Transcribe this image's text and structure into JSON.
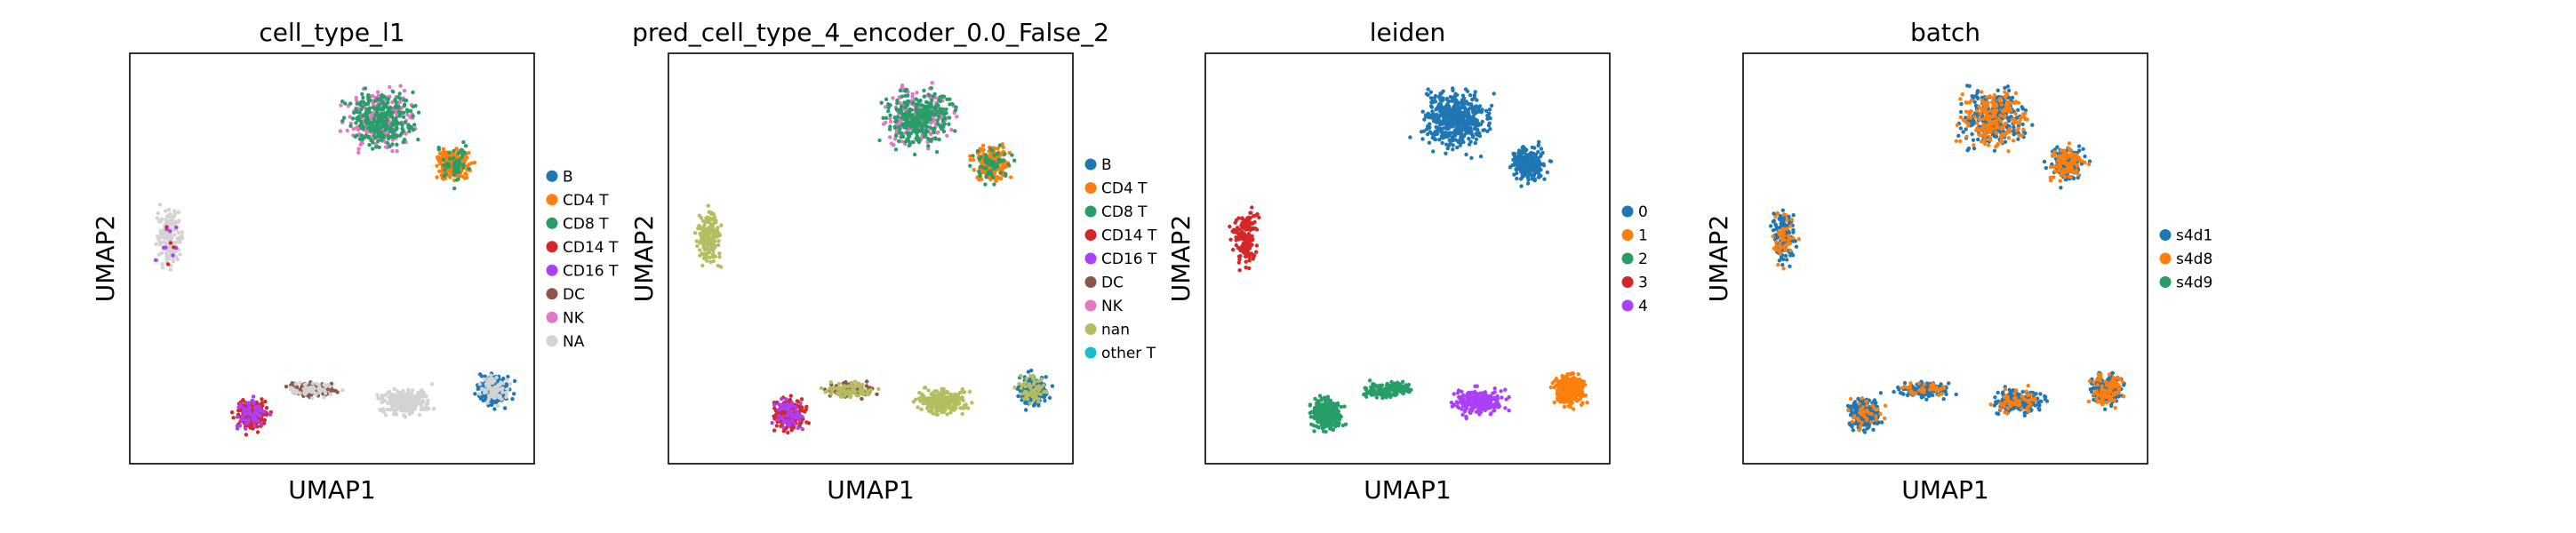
{
  "figure": {
    "panels": [
      {
        "title": "cell_type_l1",
        "xlabel": "UMAP1",
        "ylabel": "UMAP2",
        "legend": [
          {
            "label": "B",
            "color": "#1f77b4"
          },
          {
            "label": "CD4 T",
            "color": "#ff7f0e"
          },
          {
            "label": "CD8 T",
            "color": "#279e68"
          },
          {
            "label": "CD14 T",
            "color": "#d62728"
          },
          {
            "label": "CD16 T",
            "color": "#aa40fc"
          },
          {
            "label": "DC",
            "color": "#8c564b"
          },
          {
            "label": "NK",
            "color": "#e377c2"
          },
          {
            "label": "NA",
            "color": "#d3d3d3"
          }
        ]
      },
      {
        "title": "pred_cell_type_4_encoder_0.0_False_2",
        "xlabel": "UMAP1",
        "ylabel": "UMAP2",
        "legend": [
          {
            "label": "B",
            "color": "#1f77b4"
          },
          {
            "label": "CD4 T",
            "color": "#ff7f0e"
          },
          {
            "label": "CD8 T",
            "color": "#279e68"
          },
          {
            "label": "CD14 T",
            "color": "#d62728"
          },
          {
            "label": "CD16 T",
            "color": "#aa40fc"
          },
          {
            "label": "DC",
            "color": "#8c564b"
          },
          {
            "label": "NK",
            "color": "#e377c2"
          },
          {
            "label": "nan",
            "color": "#b5bd61"
          },
          {
            "label": "other T",
            "color": "#17becf"
          }
        ]
      },
      {
        "title": "leiden",
        "xlabel": "UMAP1",
        "ylabel": "UMAP2",
        "legend": [
          {
            "label": "0",
            "color": "#1f77b4"
          },
          {
            "label": "1",
            "color": "#ff7f0e"
          },
          {
            "label": "2",
            "color": "#279e68"
          },
          {
            "label": "3",
            "color": "#d62728"
          },
          {
            "label": "4",
            "color": "#aa40fc"
          }
        ]
      },
      {
        "title": "batch",
        "xlabel": "UMAP1",
        "ylabel": "UMAP2",
        "legend": [
          {
            "label": "s4d1",
            "color": "#1f77b4"
          },
          {
            "label": "s4d8",
            "color": "#ff7f0e"
          },
          {
            "label": "s4d9",
            "color": "#279e68"
          }
        ]
      }
    ]
  },
  "chart_data": [
    {
      "type": "scatter",
      "title": "cell_type_l1",
      "xlabel": "UMAP1",
      "ylabel": "UMAP2",
      "grid": false,
      "legend_position": "right",
      "series": [
        {
          "name": "B"
        },
        {
          "name": "CD4 T"
        },
        {
          "name": "CD8 T"
        },
        {
          "name": "CD14 T"
        },
        {
          "name": "CD16 T"
        },
        {
          "name": "DC"
        },
        {
          "name": "NK"
        },
        {
          "name": "NA"
        }
      ]
    },
    {
      "type": "scatter",
      "title": "pred_cell_type_4_encoder_0.0_False_2",
      "xlabel": "UMAP1",
      "ylabel": "UMAP2",
      "grid": false,
      "legend_position": "right",
      "series": [
        {
          "name": "B"
        },
        {
          "name": "CD4 T"
        },
        {
          "name": "CD8 T"
        },
        {
          "name": "CD14 T"
        },
        {
          "name": "CD16 T"
        },
        {
          "name": "DC"
        },
        {
          "name": "NK"
        },
        {
          "name": "nan"
        },
        {
          "name": "other T"
        }
      ]
    },
    {
      "type": "scatter",
      "title": "leiden",
      "xlabel": "UMAP1",
      "ylabel": "UMAP2",
      "grid": false,
      "legend_position": "right",
      "series": [
        {
          "name": "0"
        },
        {
          "name": "1"
        },
        {
          "name": "2"
        },
        {
          "name": "3"
        },
        {
          "name": "4"
        }
      ]
    },
    {
      "type": "scatter",
      "title": "batch",
      "xlabel": "UMAP1",
      "ylabel": "UMAP2",
      "grid": false,
      "legend_position": "right",
      "series": [
        {
          "name": "s4d1"
        },
        {
          "name": "s4d8"
        },
        {
          "name": "s4d9"
        }
      ]
    }
  ]
}
